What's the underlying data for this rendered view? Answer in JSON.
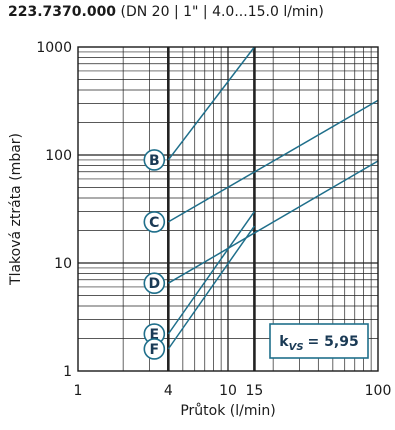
{
  "header": {
    "code": "223.7370.000",
    "spec": "(DN 20 | 1\" | 4.0...15.0 l/min)"
  },
  "chart_data": {
    "type": "line",
    "title": "",
    "xlabel": "Průtok (l/min)",
    "ylabel": "Tlaková ztráta (mbar)",
    "x_scale": "log",
    "y_scale": "log",
    "xlim": [
      1,
      100
    ],
    "ylim": [
      1,
      1000
    ],
    "x_ticks": [
      {
        "value": 1,
        "label": "1"
      },
      {
        "value": 4,
        "label": "4"
      },
      {
        "value": 10,
        "label": "10"
      },
      {
        "value": 15,
        "label": "15"
      },
      {
        "value": 100,
        "label": "100"
      }
    ],
    "y_ticks": [
      {
        "value": 1,
        "label": "1"
      },
      {
        "value": 10,
        "label": "10"
      },
      {
        "value": 100,
        "label": "100"
      },
      {
        "value": 1000,
        "label": "1000"
      }
    ],
    "highlight_x": [
      4,
      15
    ],
    "grid": true,
    "series": [
      {
        "name": "B",
        "x": [
          4,
          15
        ],
        "y": [
          90,
          1000
        ]
      },
      {
        "name": "C",
        "x": [
          4,
          100
        ],
        "y": [
          24,
          320
        ]
      },
      {
        "name": "D",
        "x": [
          4,
          100
        ],
        "y": [
          6.5,
          88
        ]
      },
      {
        "name": "E",
        "x": [
          4,
          15
        ],
        "y": [
          2.2,
          30
        ]
      },
      {
        "name": "F",
        "x": [
          4,
          15
        ],
        "y": [
          1.6,
          22
        ]
      }
    ],
    "annotation": {
      "k": "k",
      "sub": "VS",
      "value": "= 5,95"
    },
    "colors": {
      "curve": "#1f6f8b",
      "label": "#1a3a55",
      "grid": "#222222"
    }
  }
}
